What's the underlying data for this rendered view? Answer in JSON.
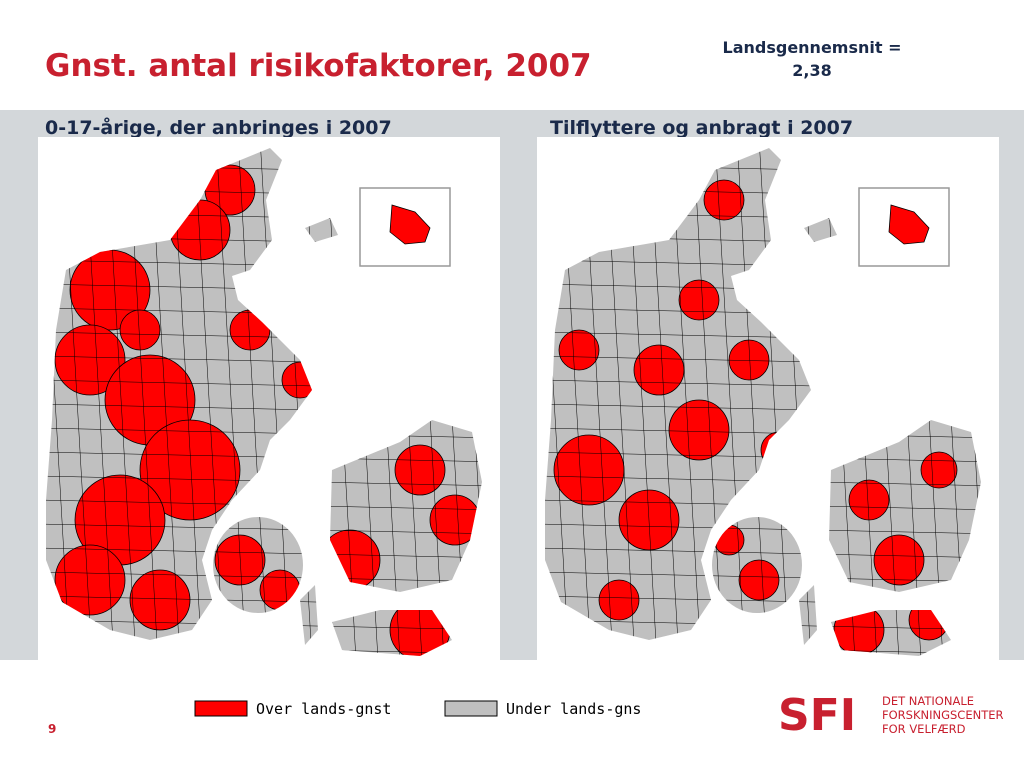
{
  "header": {
    "title": "Gnst. antal risikofaktorer, 2007",
    "note_line1": "Landsgennemsnit =",
    "note_line2": "2,38"
  },
  "maps": [
    {
      "title": "0-17-årige, der anbringes i 2007"
    },
    {
      "title": "Tilflyttere og anbragt i 2007"
    }
  ],
  "legend": {
    "items": [
      {
        "label": "Over lands-gnst",
        "color": "#ff0000"
      },
      {
        "label": "Under lands-gns",
        "color": "#c0c0c0"
      }
    ]
  },
  "footer": {
    "page": "9",
    "logo": "SFI",
    "org_line1": "DET NATIONALE",
    "org_line2": "FORSKNINGSCENTER",
    "org_line3": "FOR VELFÆRD"
  }
}
